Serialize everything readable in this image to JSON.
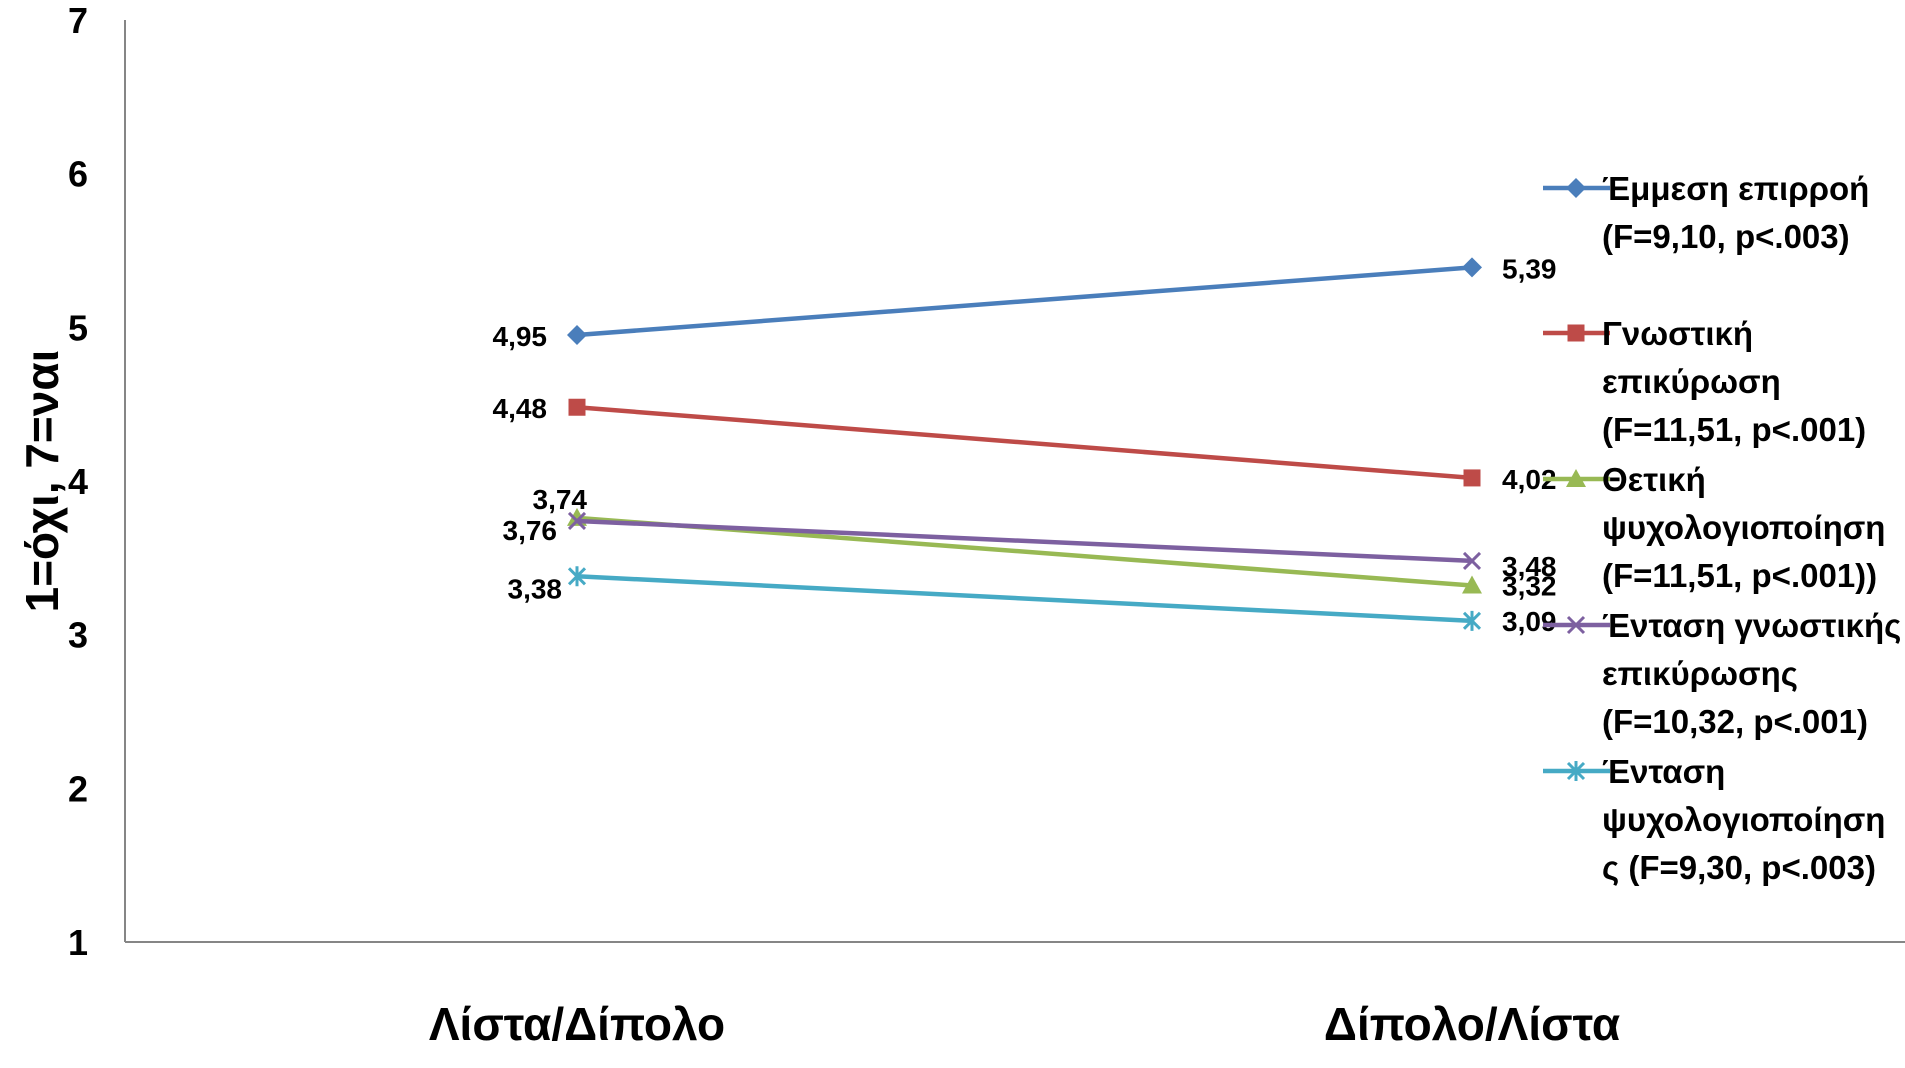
{
  "chart_data": {
    "type": "line",
    "ylabel": "1=όχι, 7=ναι",
    "xlabel": "",
    "ylim": [
      1,
      7
    ],
    "yticks": [
      "1",
      "2",
      "3",
      "4",
      "5",
      "6",
      "7"
    ],
    "categories": [
      "Λίστα/Δίπολο",
      "Δίπολο/Λίστα"
    ],
    "grid": false,
    "legend_position": "right",
    "series": [
      {
        "name": "Έμμεση επιρροή (F=9,10, p<.003)",
        "legend_lines": [
          "Έμμεση επιρροή",
          "(F=9,10, p<.003)"
        ],
        "values": [
          4.95,
          5.39
        ],
        "labels": [
          "4,95",
          "5,39"
        ],
        "color": "#4a7ebb",
        "marker": "diamond"
      },
      {
        "name": "Γνωστική επικύρωση (F=11,51, p<.001)",
        "legend_lines": [
          "Γνωστική",
          "επικύρωση",
          "(F=11,51, p<.001)"
        ],
        "values": [
          4.48,
          4.02
        ],
        "labels": [
          "4,48",
          "4,02"
        ],
        "color": "#be4b48",
        "marker": "square"
      },
      {
        "name": "Θετική ψυχολογιοποίηση (F=11,51, p<.001))",
        "legend_lines": [
          "Θετική",
          "ψυχολογιοποίηση",
          "(F=11,51, p<.001))"
        ],
        "values": [
          3.76,
          3.32
        ],
        "labels": [
          "3,76",
          "3,32"
        ],
        "color": "#98b954",
        "marker": "triangle"
      },
      {
        "name": "Ένταση γνωστικής επικύρωσης (F=10,32, p<.001)",
        "legend_lines": [
          "Ένταση γνωστικής",
          "επικύρωσης",
          "(F=10,32, p<.001)"
        ],
        "values": [
          3.74,
          3.48
        ],
        "labels": [
          "3,74",
          "3,48"
        ],
        "color": "#7d60a0",
        "marker": "x"
      },
      {
        "name": "Ένταση ψυχολογιοποίησης (F=9,30, p<.003)",
        "legend_lines": [
          "Ένταση",
          "ψυχολογιοποίηση",
          "ς (F=9,30, p<.003)"
        ],
        "values": [
          3.38,
          3.09
        ],
        "labels": [
          "3,38",
          "3,09"
        ],
        "color": "#46aac5",
        "marker": "star"
      }
    ]
  }
}
